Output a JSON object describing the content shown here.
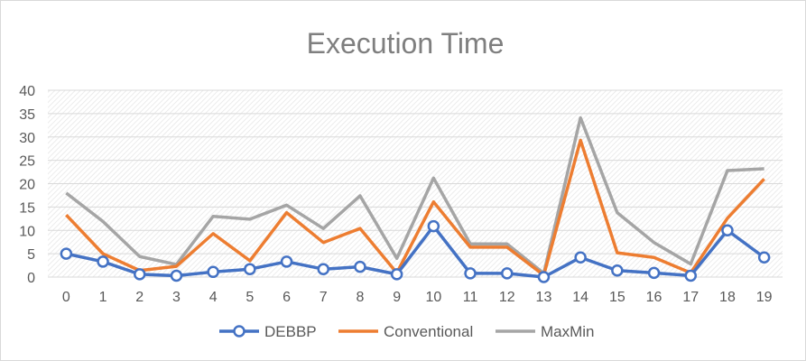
{
  "chart_data": {
    "type": "line",
    "title": "Execution Time",
    "xlabel": "",
    "ylabel": "",
    "x": [
      "0",
      "1",
      "2",
      "3",
      "4",
      "5",
      "6",
      "7",
      "8",
      "9",
      "10",
      "11",
      "12",
      "13",
      "14",
      "15",
      "16",
      "17",
      "18",
      "19"
    ],
    "ylim": [
      0,
      40
    ],
    "yticks": [
      "0",
      "5",
      "10",
      "15",
      "20",
      "25",
      "30",
      "35",
      "40"
    ],
    "grid": true,
    "legend_position": "bottom",
    "series": [
      {
        "name": "DEBBP",
        "color": "#4472c4",
        "markers": true,
        "values": [
          5,
          3.3,
          0.6,
          0.3,
          1.1,
          1.7,
          3.3,
          1.7,
          2.2,
          0.6,
          10.9,
          0.8,
          0.8,
          0,
          4.2,
          1.4,
          0.9,
          0.3,
          10,
          4.2
        ]
      },
      {
        "name": "Conventional",
        "color": "#ed7d31",
        "markers": false,
        "values": [
          13.3,
          5,
          1.4,
          2.3,
          9.3,
          3.5,
          13.8,
          7.4,
          10.4,
          0.9,
          16.1,
          6.4,
          6.4,
          0.4,
          29.3,
          5.2,
          4.2,
          0.9,
          12.6,
          21
        ]
      },
      {
        "name": "MaxMin",
        "color": "#a5a5a5",
        "markers": false,
        "values": [
          18,
          11.9,
          4.4,
          2.7,
          13,
          12.4,
          15.4,
          10.4,
          17.4,
          4,
          21.2,
          7.1,
          7.1,
          0.8,
          34.1,
          13.8,
          7.4,
          2.8,
          22.8,
          23.2
        ]
      }
    ]
  }
}
